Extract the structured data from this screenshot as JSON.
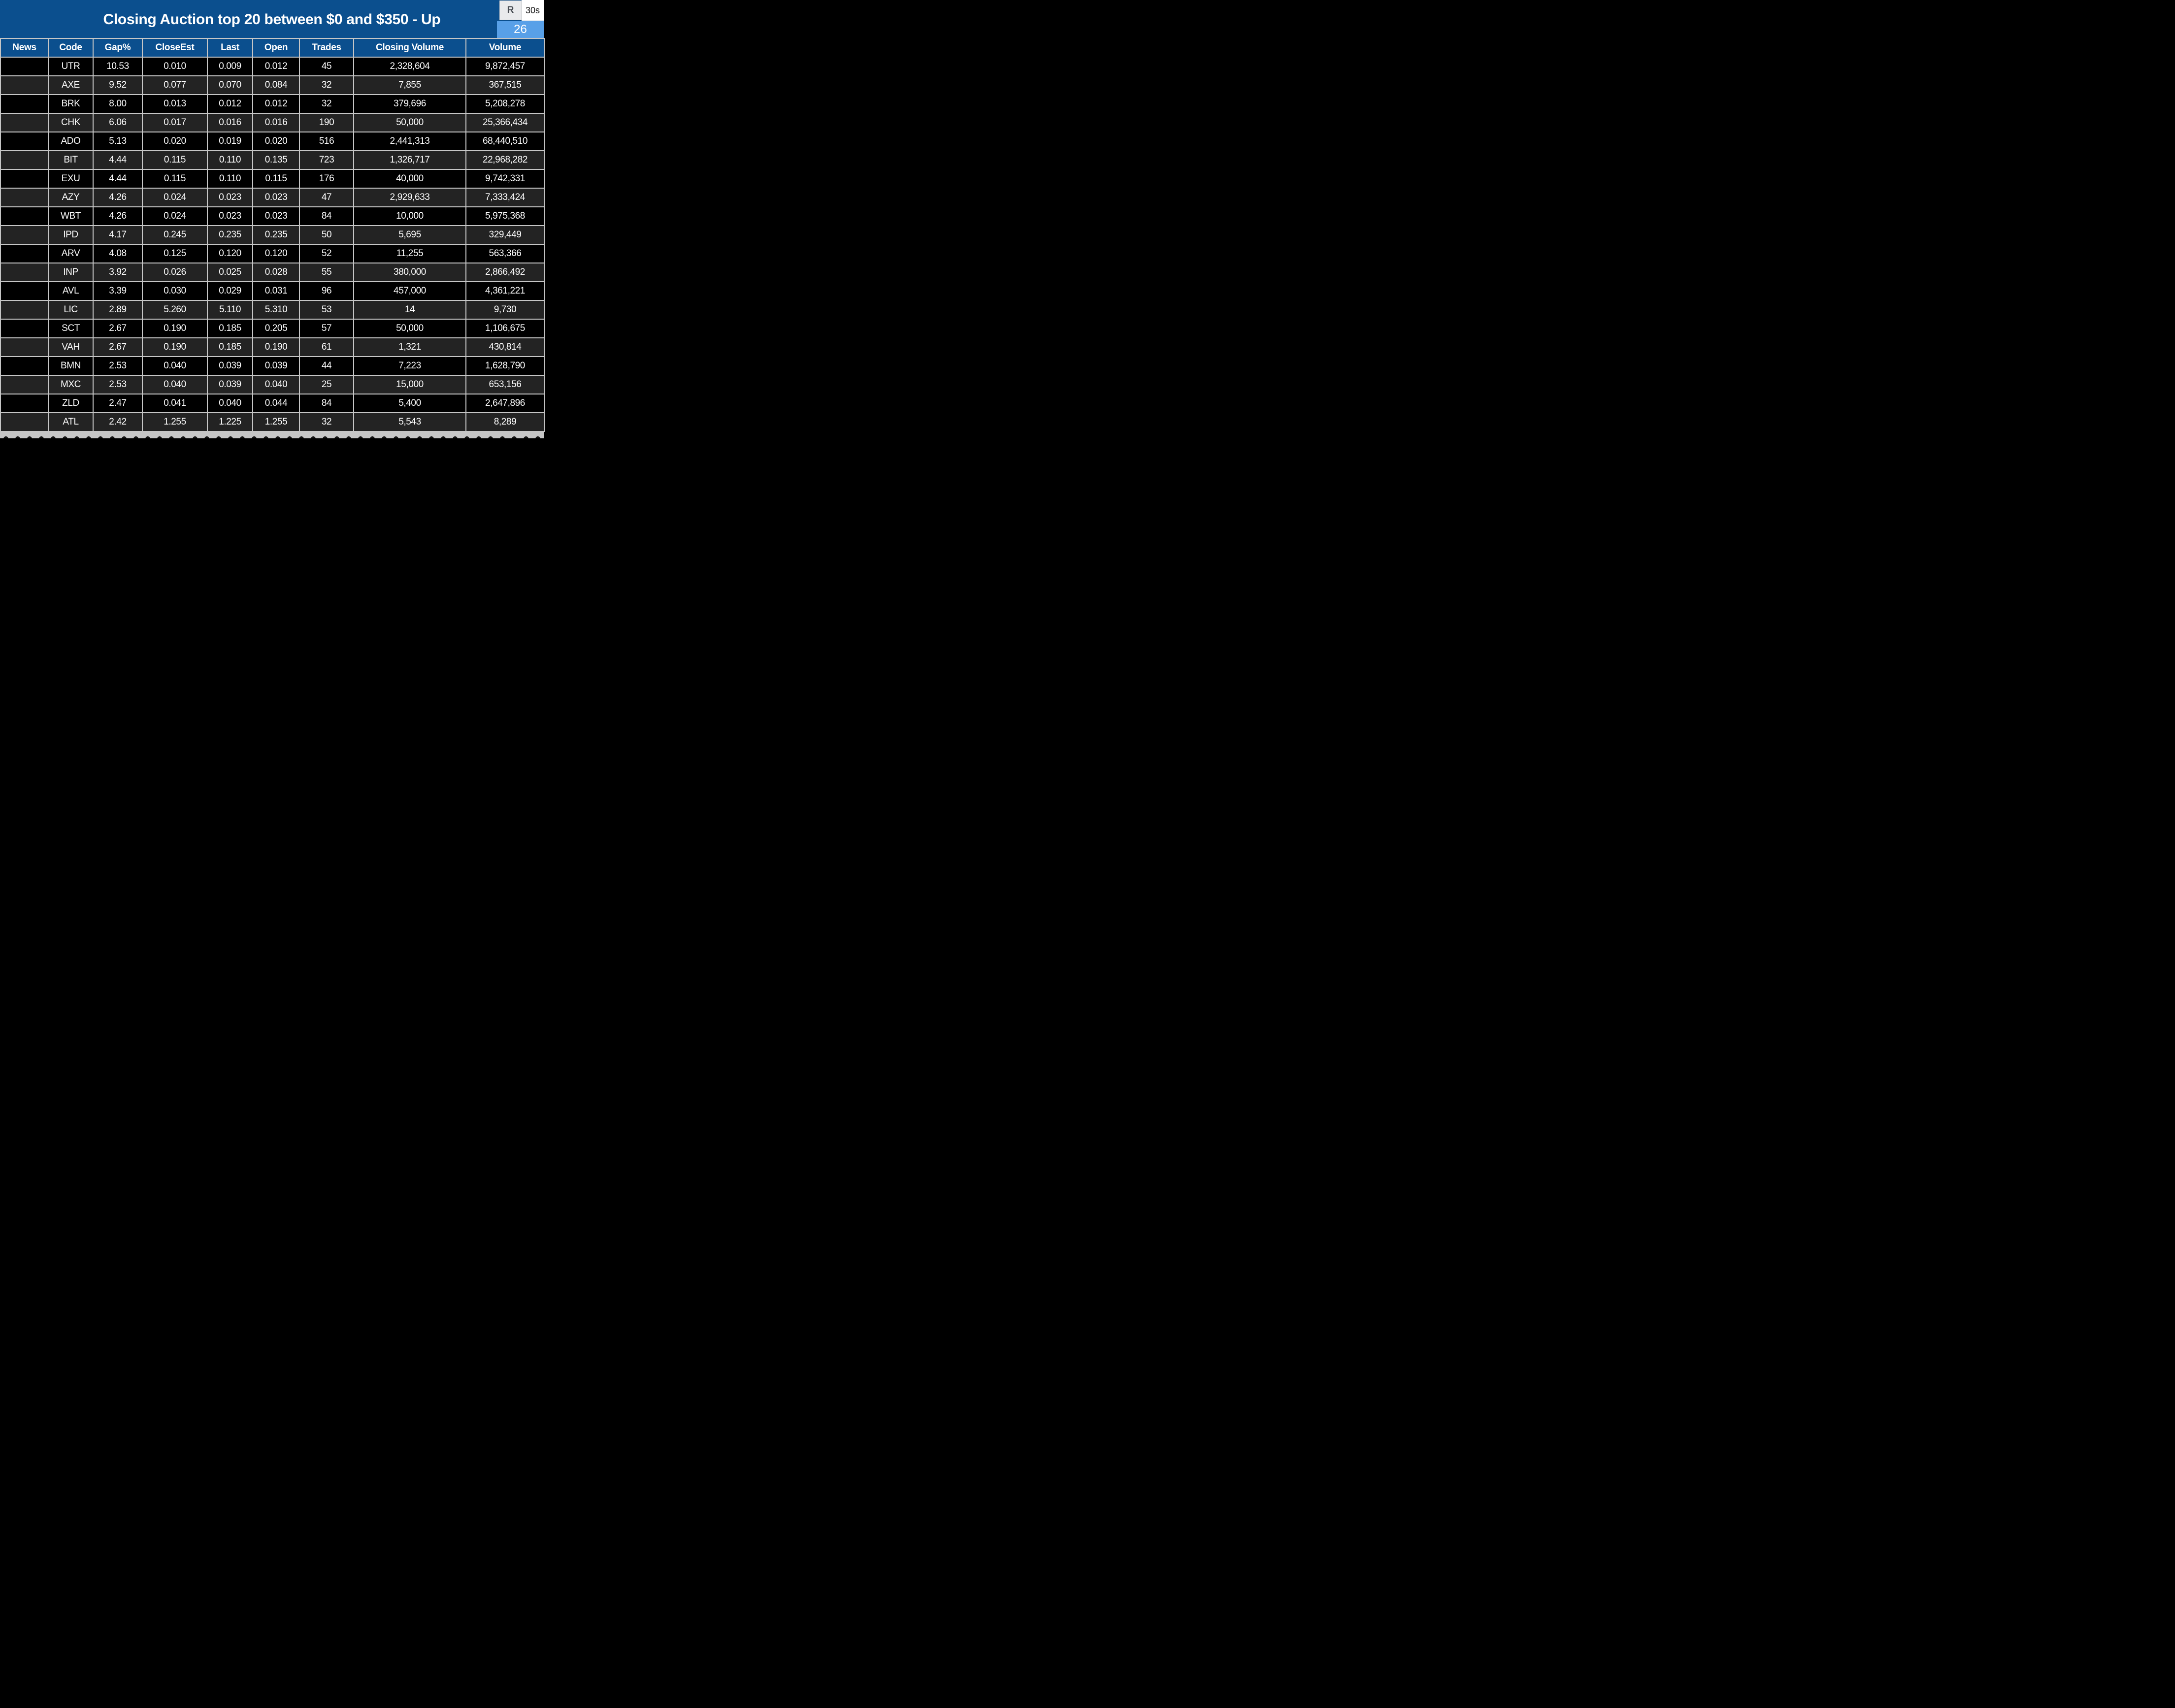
{
  "title": "Closing Auction top 20 between $0 and $350 - Up",
  "controls": {
    "refresh_label": "R",
    "interval_label": "30s",
    "count_badge": "26"
  },
  "colors": {
    "banner_blue": "#0b4f8e",
    "header_blue": "#0b4f8e",
    "badge_blue": "#58a0e8",
    "row_black": "#000000",
    "row_alt_gray": "#232323",
    "grid_line_gray": "#c6c6c6",
    "text_white": "#ffffff",
    "r_button_gray": "#e9eaec"
  },
  "table": {
    "columns": [
      "News",
      "Code",
      "Gap%",
      "CloseEst",
      "Last",
      "Open",
      "Trades",
      "Closing Volume",
      "Volume"
    ],
    "rows": [
      {
        "news": "",
        "code": "UTR",
        "gap_pct": "10.53",
        "close_est": "0.010",
        "last": "0.009",
        "open": "0.012",
        "trades": "45",
        "closing_volume": "2,328,604",
        "volume": "9,872,457"
      },
      {
        "news": "",
        "code": "AXE",
        "gap_pct": "9.52",
        "close_est": "0.077",
        "last": "0.070",
        "open": "0.084",
        "trades": "32",
        "closing_volume": "7,855",
        "volume": "367,515"
      },
      {
        "news": "",
        "code": "BRK",
        "gap_pct": "8.00",
        "close_est": "0.013",
        "last": "0.012",
        "open": "0.012",
        "trades": "32",
        "closing_volume": "379,696",
        "volume": "5,208,278"
      },
      {
        "news": "",
        "code": "CHK",
        "gap_pct": "6.06",
        "close_est": "0.017",
        "last": "0.016",
        "open": "0.016",
        "trades": "190",
        "closing_volume": "50,000",
        "volume": "25,366,434"
      },
      {
        "news": "",
        "code": "ADO",
        "gap_pct": "5.13",
        "close_est": "0.020",
        "last": "0.019",
        "open": "0.020",
        "trades": "516",
        "closing_volume": "2,441,313",
        "volume": "68,440,510"
      },
      {
        "news": "",
        "code": "BIT",
        "gap_pct": "4.44",
        "close_est": "0.115",
        "last": "0.110",
        "open": "0.135",
        "trades": "723",
        "closing_volume": "1,326,717",
        "volume": "22,968,282"
      },
      {
        "news": "",
        "code": "EXU",
        "gap_pct": "4.44",
        "close_est": "0.115",
        "last": "0.110",
        "open": "0.115",
        "trades": "176",
        "closing_volume": "40,000",
        "volume": "9,742,331"
      },
      {
        "news": "",
        "code": "AZY",
        "gap_pct": "4.26",
        "close_est": "0.024",
        "last": "0.023",
        "open": "0.023",
        "trades": "47",
        "closing_volume": "2,929,633",
        "volume": "7,333,424"
      },
      {
        "news": "",
        "code": "WBT",
        "gap_pct": "4.26",
        "close_est": "0.024",
        "last": "0.023",
        "open": "0.023",
        "trades": "84",
        "closing_volume": "10,000",
        "volume": "5,975,368"
      },
      {
        "news": "",
        "code": "IPD",
        "gap_pct": "4.17",
        "close_est": "0.245",
        "last": "0.235",
        "open": "0.235",
        "trades": "50",
        "closing_volume": "5,695",
        "volume": "329,449"
      },
      {
        "news": "",
        "code": "ARV",
        "gap_pct": "4.08",
        "close_est": "0.125",
        "last": "0.120",
        "open": "0.120",
        "trades": "52",
        "closing_volume": "11,255",
        "volume": "563,366"
      },
      {
        "news": "",
        "code": "INP",
        "gap_pct": "3.92",
        "close_est": "0.026",
        "last": "0.025",
        "open": "0.028",
        "trades": "55",
        "closing_volume": "380,000",
        "volume": "2,866,492"
      },
      {
        "news": "",
        "code": "AVL",
        "gap_pct": "3.39",
        "close_est": "0.030",
        "last": "0.029",
        "open": "0.031",
        "trades": "96",
        "closing_volume": "457,000",
        "volume": "4,361,221"
      },
      {
        "news": "",
        "code": "LIC",
        "gap_pct": "2.89",
        "close_est": "5.260",
        "last": "5.110",
        "open": "5.310",
        "trades": "53",
        "closing_volume": "14",
        "volume": "9,730"
      },
      {
        "news": "",
        "code": "SCT",
        "gap_pct": "2.67",
        "close_est": "0.190",
        "last": "0.185",
        "open": "0.205",
        "trades": "57",
        "closing_volume": "50,000",
        "volume": "1,106,675"
      },
      {
        "news": "",
        "code": "VAH",
        "gap_pct": "2.67",
        "close_est": "0.190",
        "last": "0.185",
        "open": "0.190",
        "trades": "61",
        "closing_volume": "1,321",
        "volume": "430,814"
      },
      {
        "news": "",
        "code": "BMN",
        "gap_pct": "2.53",
        "close_est": "0.040",
        "last": "0.039",
        "open": "0.039",
        "trades": "44",
        "closing_volume": "7,223",
        "volume": "1,628,790"
      },
      {
        "news": "",
        "code": "MXC",
        "gap_pct": "2.53",
        "close_est": "0.040",
        "last": "0.039",
        "open": "0.040",
        "trades": "25",
        "closing_volume": "15,000",
        "volume": "653,156"
      },
      {
        "news": "",
        "code": "ZLD",
        "gap_pct": "2.47",
        "close_est": "0.041",
        "last": "0.040",
        "open": "0.044",
        "trades": "84",
        "closing_volume": "5,400",
        "volume": "2,647,896"
      },
      {
        "news": "",
        "code": "ATL",
        "gap_pct": "2.42",
        "close_est": "1.255",
        "last": "1.225",
        "open": "1.255",
        "trades": "32",
        "closing_volume": "5,543",
        "volume": "8,289"
      }
    ]
  }
}
